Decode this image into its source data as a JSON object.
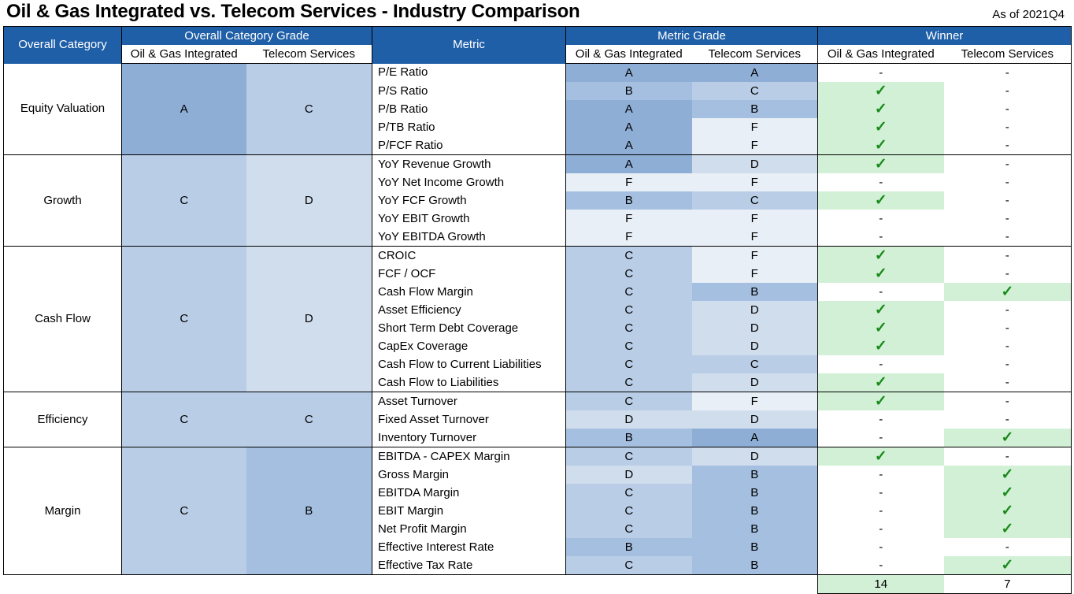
{
  "title": "Oil & Gas Integrated vs. Telecom Services - Industry Comparison",
  "as_of": "As of 2021Q4",
  "headers": {
    "overall_category": "Overall Category",
    "overall_category_grade": "Overall Category Grade",
    "metric": "Metric",
    "metric_grade": "Metric Grade",
    "winner": "Winner",
    "industry_a": "Oil & Gas Integrated",
    "industry_b": "Telecom Services"
  },
  "colors": {
    "header_blue": "#1f5fa8",
    "grade_A": "#8eaed6",
    "grade_B": "#a4bfdf",
    "grade_C": "#b9cee6",
    "grade_D": "#d0dded",
    "grade_F": "#e9eff7",
    "winner_green": "#d1f0d6",
    "check_green": "#1a8a1a"
  },
  "categories": [
    {
      "name": "Equity Valuation",
      "grade_a": "A",
      "grade_b": "C",
      "metrics": [
        {
          "name": "P/E Ratio",
          "a": "A",
          "b": "A",
          "win_a": "-",
          "win_b": "-"
        },
        {
          "name": "P/S Ratio",
          "a": "B",
          "b": "C",
          "win_a": "✓",
          "win_b": "-"
        },
        {
          "name": "P/B Ratio",
          "a": "A",
          "b": "B",
          "win_a": "✓",
          "win_b": "-"
        },
        {
          "name": "P/TB Ratio",
          "a": "A",
          "b": "F",
          "win_a": "✓",
          "win_b": "-"
        },
        {
          "name": "P/FCF Ratio",
          "a": "A",
          "b": "F",
          "win_a": "✓",
          "win_b": "-"
        }
      ]
    },
    {
      "name": "Growth",
      "grade_a": "C",
      "grade_b": "D",
      "metrics": [
        {
          "name": "YoY Revenue Growth",
          "a": "A",
          "b": "D",
          "win_a": "✓",
          "win_b": "-"
        },
        {
          "name": "YoY Net Income Growth",
          "a": "F",
          "b": "F",
          "win_a": "-",
          "win_b": "-"
        },
        {
          "name": "YoY FCF Growth",
          "a": "B",
          "b": "C",
          "win_a": "✓",
          "win_b": "-"
        },
        {
          "name": "YoY EBIT Growth",
          "a": "F",
          "b": "F",
          "win_a": "-",
          "win_b": "-"
        },
        {
          "name": "YoY EBITDA Growth",
          "a": "F",
          "b": "F",
          "win_a": "-",
          "win_b": "-"
        }
      ]
    },
    {
      "name": "Cash Flow",
      "grade_a": "C",
      "grade_b": "D",
      "metrics": [
        {
          "name": "CROIC",
          "a": "C",
          "b": "F",
          "win_a": "✓",
          "win_b": "-"
        },
        {
          "name": "FCF / OCF",
          "a": "C",
          "b": "F",
          "win_a": "✓",
          "win_b": "-"
        },
        {
          "name": "Cash Flow Margin",
          "a": "C",
          "b": "B",
          "win_a": "-",
          "win_b": "✓"
        },
        {
          "name": "Asset Efficiency",
          "a": "C",
          "b": "D",
          "win_a": "✓",
          "win_b": "-"
        },
        {
          "name": "Short Term Debt Coverage",
          "a": "C",
          "b": "D",
          "win_a": "✓",
          "win_b": "-"
        },
        {
          "name": "CapEx Coverage",
          "a": "C",
          "b": "D",
          "win_a": "✓",
          "win_b": "-"
        },
        {
          "name": "Cash Flow to Current Liabilities",
          "a": "C",
          "b": "C",
          "win_a": "-",
          "win_b": "-"
        },
        {
          "name": "Cash Flow to Liabilities",
          "a": "C",
          "b": "D",
          "win_a": "✓",
          "win_b": "-"
        }
      ]
    },
    {
      "name": "Efficiency",
      "grade_a": "C",
      "grade_b": "C",
      "metrics": [
        {
          "name": "Asset Turnover",
          "a": "C",
          "b": "F",
          "win_a": "✓",
          "win_b": "-"
        },
        {
          "name": "Fixed Asset Turnover",
          "a": "D",
          "b": "D",
          "win_a": "-",
          "win_b": "-"
        },
        {
          "name": "Inventory Turnover",
          "a": "B",
          "b": "A",
          "win_a": "-",
          "win_b": "✓"
        }
      ]
    },
    {
      "name": "Margin",
      "grade_a": "C",
      "grade_b": "B",
      "metrics": [
        {
          "name": "EBITDA - CAPEX Margin",
          "a": "C",
          "b": "D",
          "win_a": "✓",
          "win_b": "-"
        },
        {
          "name": "Gross Margin",
          "a": "D",
          "b": "B",
          "win_a": "-",
          "win_b": "✓"
        },
        {
          "name": "EBITDA Margin",
          "a": "C",
          "b": "B",
          "win_a": "-",
          "win_b": "✓"
        },
        {
          "name": "EBIT Margin",
          "a": "C",
          "b": "B",
          "win_a": "-",
          "win_b": "✓"
        },
        {
          "name": "Net Profit Margin",
          "a": "C",
          "b": "B",
          "win_a": "-",
          "win_b": "✓"
        },
        {
          "name": "Effective Interest Rate",
          "a": "B",
          "b": "B",
          "win_a": "-",
          "win_b": "-"
        },
        {
          "name": "Effective Tax Rate",
          "a": "C",
          "b": "B",
          "win_a": "-",
          "win_b": "✓"
        }
      ]
    }
  ],
  "totals": {
    "a": "14",
    "b": "7"
  }
}
